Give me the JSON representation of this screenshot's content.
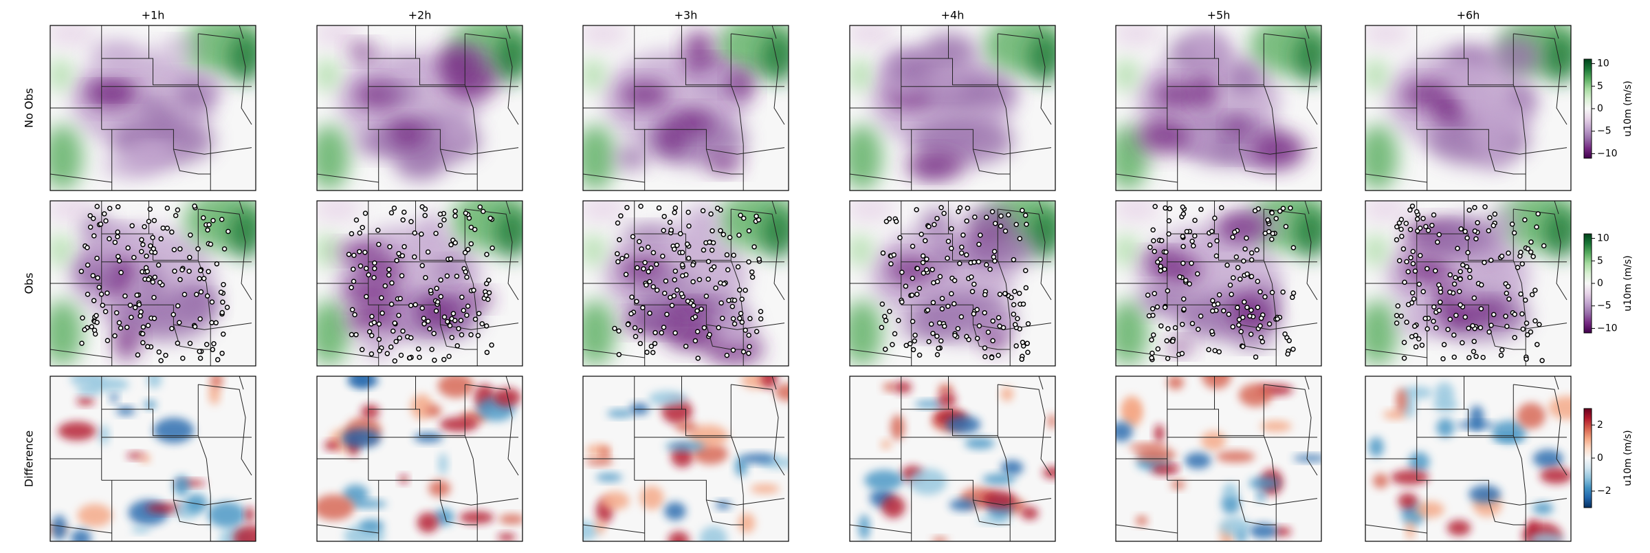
{
  "columns": [
    "+1h",
    "+2h",
    "+3h",
    "+4h",
    "+5h",
    "+6h"
  ],
  "rows": [
    {
      "label": "No Obs",
      "colorbar": {
        "label": "u10m (m/s)",
        "lim": [
          -11,
          11
        ],
        "ticks": [
          10,
          5,
          0,
          {
            "value": -5,
            "label": "−5"
          },
          {
            "value": -10,
            "label": "−10"
          }
        ],
        "colormap": [
          "#40004b",
          "#762a83",
          "#9970ab",
          "#c2a5cf",
          "#e7d4e8",
          "#f7f7f7",
          "#d9f0d3",
          "#a6dba0",
          "#5aae61",
          "#1b7837",
          "#00441b"
        ]
      }
    },
    {
      "label": "Obs",
      "colorbar": {
        "label": "u10m (m/s)",
        "lim": [
          -11,
          11
        ],
        "ticks": [
          10,
          5,
          0,
          {
            "value": -5,
            "label": "−5"
          },
          {
            "value": -10,
            "label": "−10"
          }
        ],
        "colormap": [
          "#40004b",
          "#762a83",
          "#9970ab",
          "#c2a5cf",
          "#e7d4e8",
          "#f7f7f7",
          "#d9f0d3",
          "#a6dba0",
          "#5aae61",
          "#1b7837",
          "#00441b"
        ]
      }
    },
    {
      "label": "Difference",
      "colorbar": {
        "label": "u10m (m/s)",
        "lim": [
          -3,
          3
        ],
        "ticks": [
          2,
          0,
          {
            "value": -2,
            "label": "−2"
          }
        ],
        "colormap": [
          "#053061",
          "#2166ac",
          "#4393c3",
          "#92c5de",
          "#d1e5f0",
          "#f7f7f7",
          "#fddbc7",
          "#f4a582",
          "#d6604d",
          "#b2182b",
          "#67001f"
        ]
      }
    }
  ]
}
